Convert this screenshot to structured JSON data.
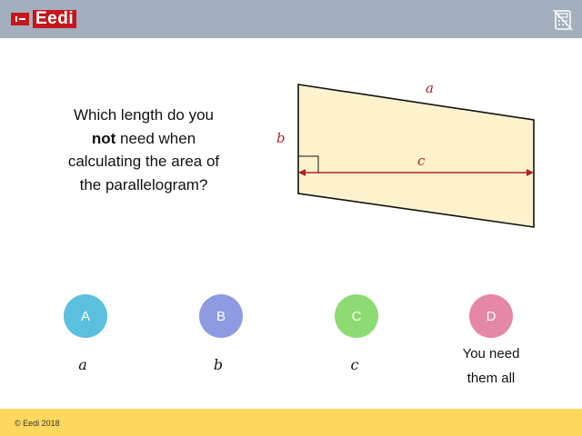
{
  "header": {
    "logo_text": "Eedi",
    "calculator_icon": "calculator-disabled-icon",
    "background": "#a3afbd"
  },
  "question": {
    "line1": "Which length do you",
    "emphasis": "not",
    "line2_rest": "need when",
    "line3": "calculating the area of",
    "line4": "the parallelogram?"
  },
  "diagram": {
    "label_a": "a",
    "label_b": "b",
    "label_c": "c",
    "fill": "#fdf2cc",
    "accent": "#b22222"
  },
  "options": [
    {
      "letter": "A",
      "color": "#5bc0de",
      "answer": "a"
    },
    {
      "letter": "B",
      "color": "#8f9be0",
      "answer": "b"
    },
    {
      "letter": "C",
      "color": "#8ddb72",
      "answer": "c"
    },
    {
      "letter": "D",
      "color": "#e587a8",
      "answer_line1": "You need",
      "answer_line2": "them all"
    }
  ],
  "footer": {
    "copyright": "© Eedi 2018",
    "background": "#fdd85e"
  }
}
